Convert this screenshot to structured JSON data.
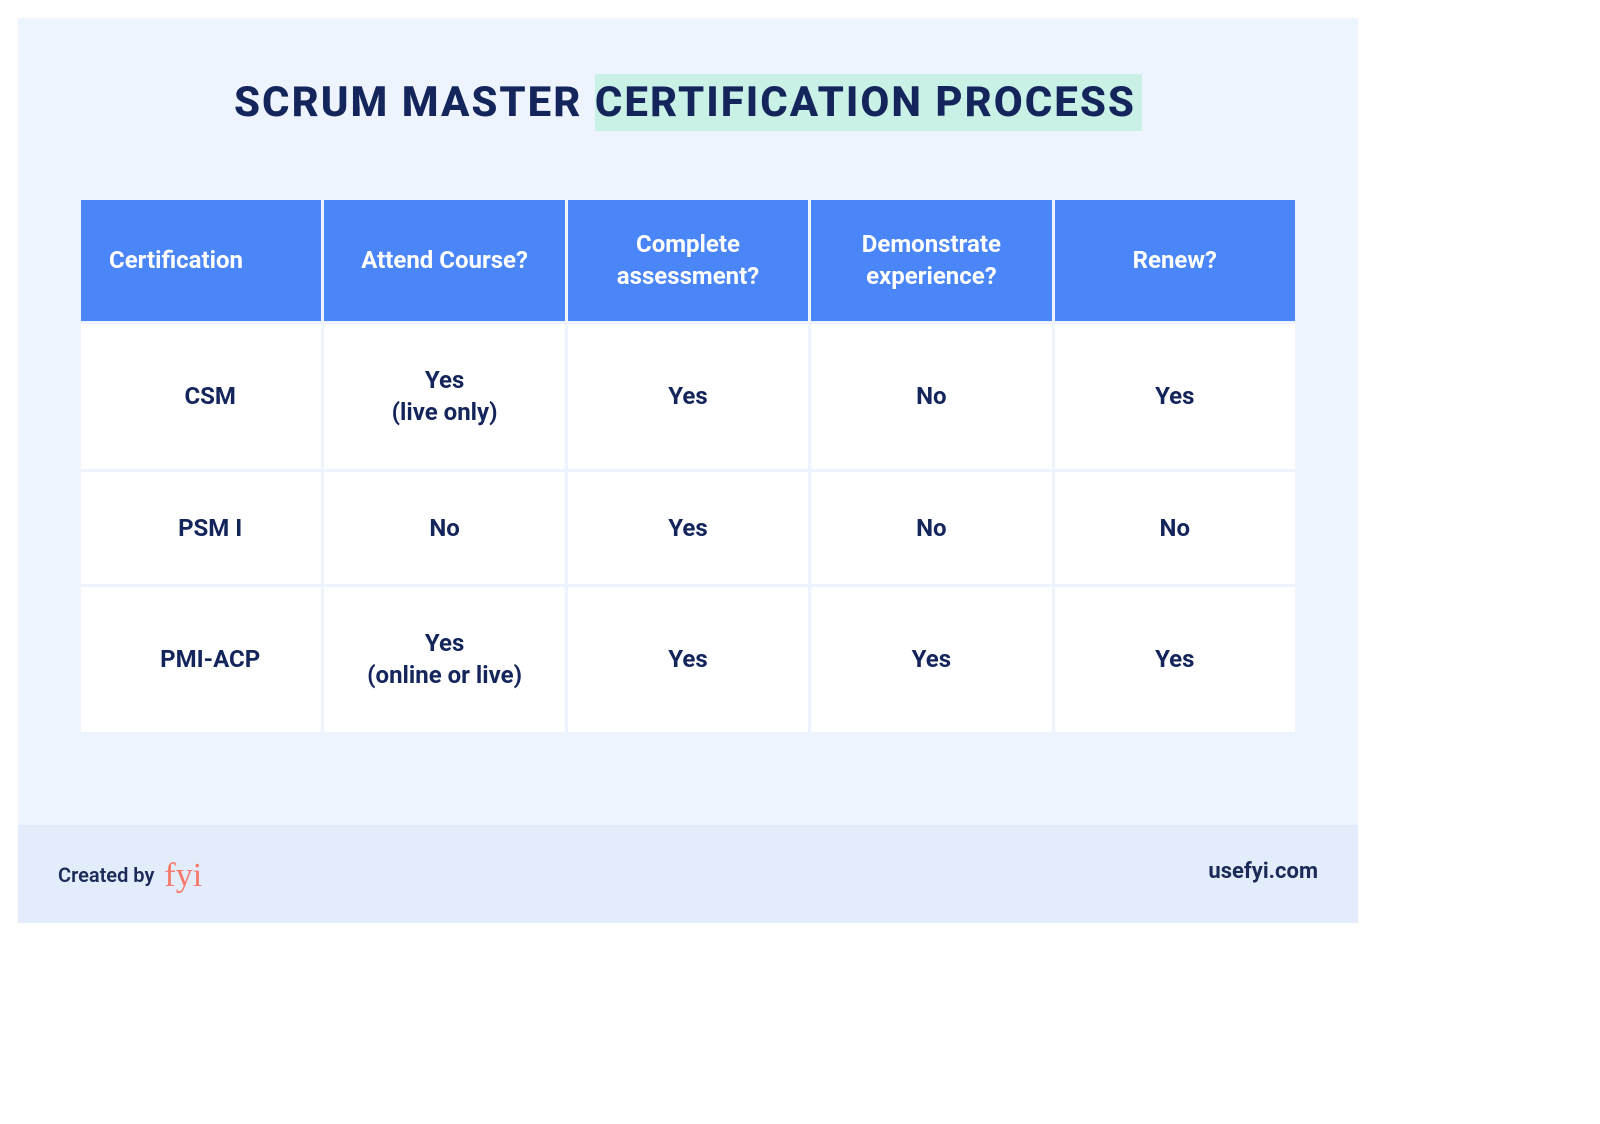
{
  "colors": {
    "page_bg": "#ffffff",
    "card_bg": "#eef4fe",
    "footer_bg": "#e3ecfb",
    "title_color": "#14255b",
    "highlight_bg": "#c9f1e6",
    "header_bg": "#4a86f7",
    "header_text": "#ffffff",
    "cell_bg": "#ffffff",
    "cell_text": "#14255b",
    "logo_color": "#f7786b"
  },
  "title": {
    "plain": "SCRUM MASTER ",
    "highlighted": "CERTIFICATION PROCESS",
    "fontsize": 42,
    "letter_spacing": 2
  },
  "table": {
    "type": "table",
    "header_fontsize": 24,
    "cell_fontsize": 24,
    "border_spacing": 3,
    "columns": [
      "Certification",
      "Attend Course?",
      "Complete assessment?",
      "Demonstrate experience?",
      "Renew?"
    ],
    "rows": [
      {
        "name": "CSM",
        "attend": "Yes",
        "attend_note": "(live only)",
        "assess": "Yes",
        "experience": "No",
        "renew": "Yes"
      },
      {
        "name": "PSM I",
        "attend": "No",
        "attend_note": "",
        "assess": "Yes",
        "experience": "No",
        "renew": "No"
      },
      {
        "name": "PMI-ACP",
        "attend": "Yes",
        "attend_note": "(online or live)",
        "assess": "Yes",
        "experience": "Yes",
        "renew": "Yes"
      }
    ]
  },
  "footer": {
    "created_by_label": "Created by",
    "logo_text": "fyi",
    "site": "usefyi.com",
    "label_fontsize": 20,
    "site_fontsize": 22
  }
}
